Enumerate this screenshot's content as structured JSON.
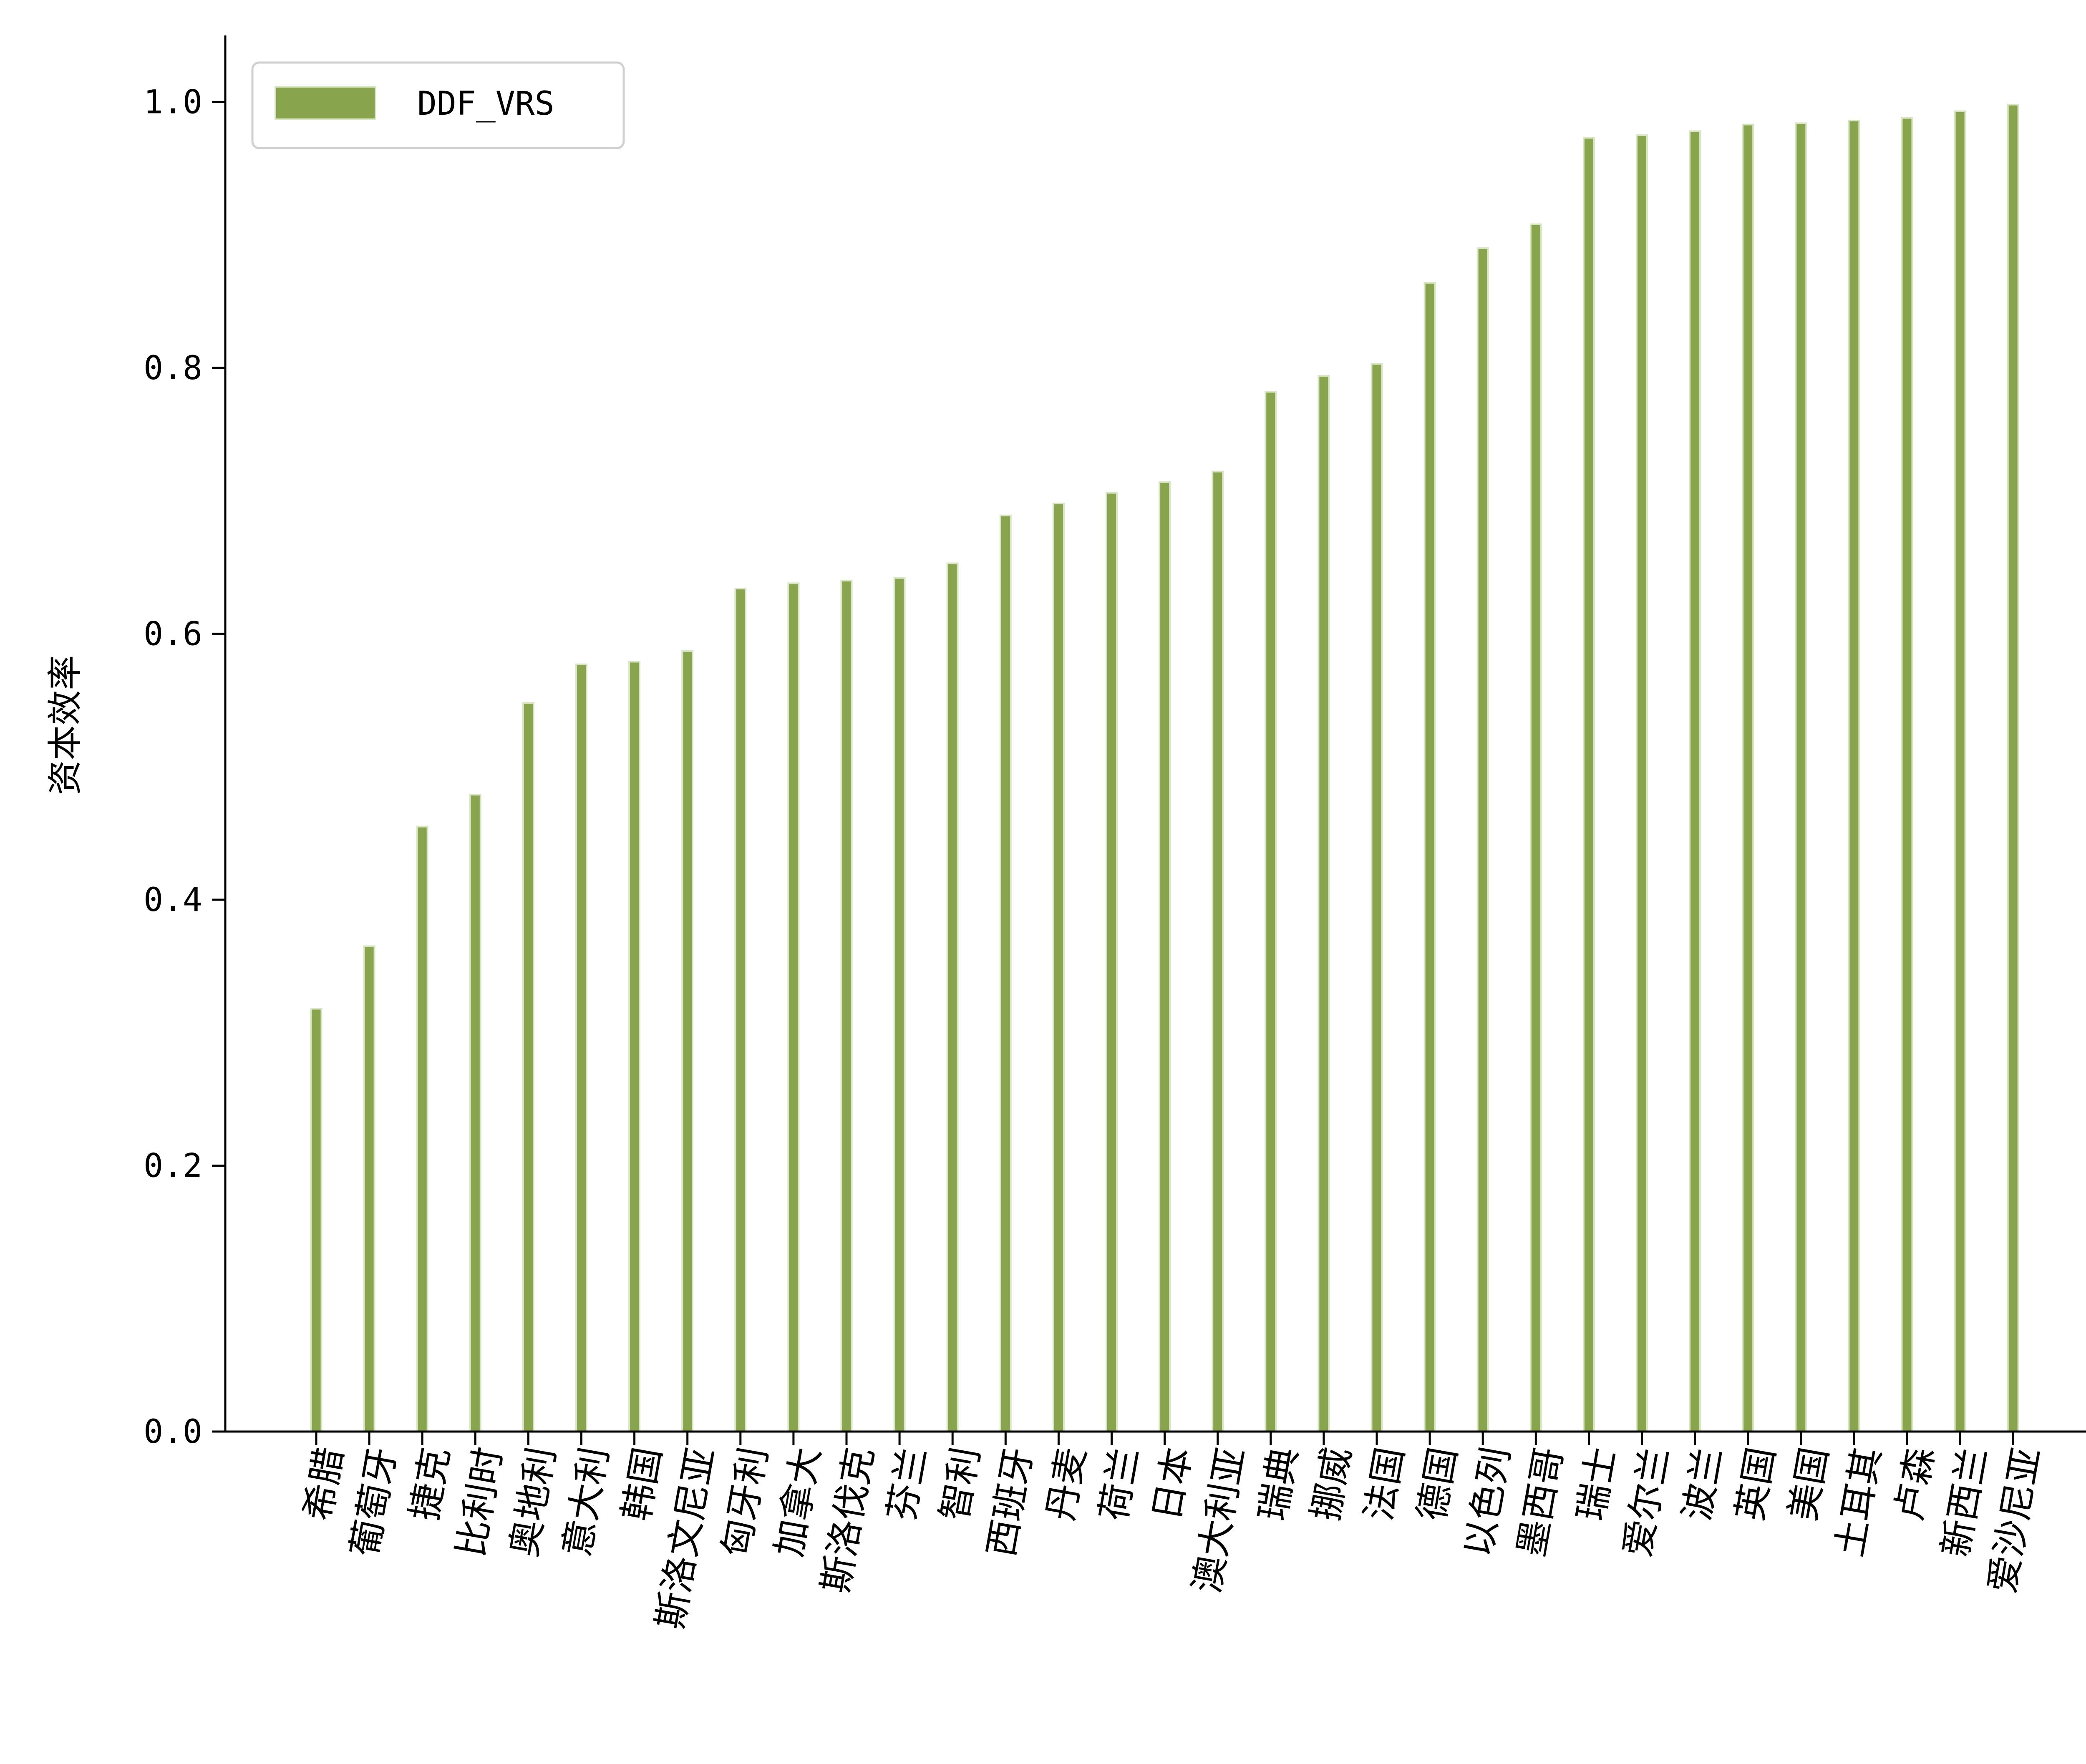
{
  "chart_data": {
    "type": "bar",
    "ylabel": "资本效率",
    "xlabel": "",
    "ylim": [
      0,
      1.05
    ],
    "yticks": [
      "0.0",
      "0.2",
      "0.4",
      "0.6",
      "0.8",
      "1.0"
    ],
    "legend": {
      "placement": "top-left"
    },
    "grid": false,
    "categories": [
      "希腊",
      "葡萄牙",
      "捷克",
      "比利时",
      "奥地利",
      "意大利",
      "韩国",
      "斯洛文尼亚",
      "匈牙利",
      "加拿大",
      "斯洛伐克",
      "芬兰",
      "智利",
      "西班牙",
      "丹麦",
      "荷兰",
      "日本",
      "澳大利亚",
      "瑞典",
      "挪威",
      "法国",
      "德国",
      "以色列",
      "墨西哥",
      "瑞士",
      "爱尔兰",
      "波兰",
      "英国",
      "美国",
      "土耳其",
      "卢森",
      "新西兰",
      "爱沙尼亚"
    ],
    "series": [
      {
        "name": "DDF_VRS",
        "color": "#88a54e",
        "values": [
          0.318,
          0.365,
          0.455,
          0.479,
          0.548,
          0.577,
          0.579,
          0.587,
          0.634,
          0.638,
          0.64,
          0.642,
          0.653,
          0.689,
          0.698,
          0.706,
          0.714,
          0.722,
          0.782,
          0.794,
          0.803,
          0.864,
          0.89,
          0.908,
          0.973,
          0.975,
          0.978,
          0.983,
          0.984,
          0.986,
          0.988,
          0.993,
          0.998
        ]
      }
    ]
  }
}
